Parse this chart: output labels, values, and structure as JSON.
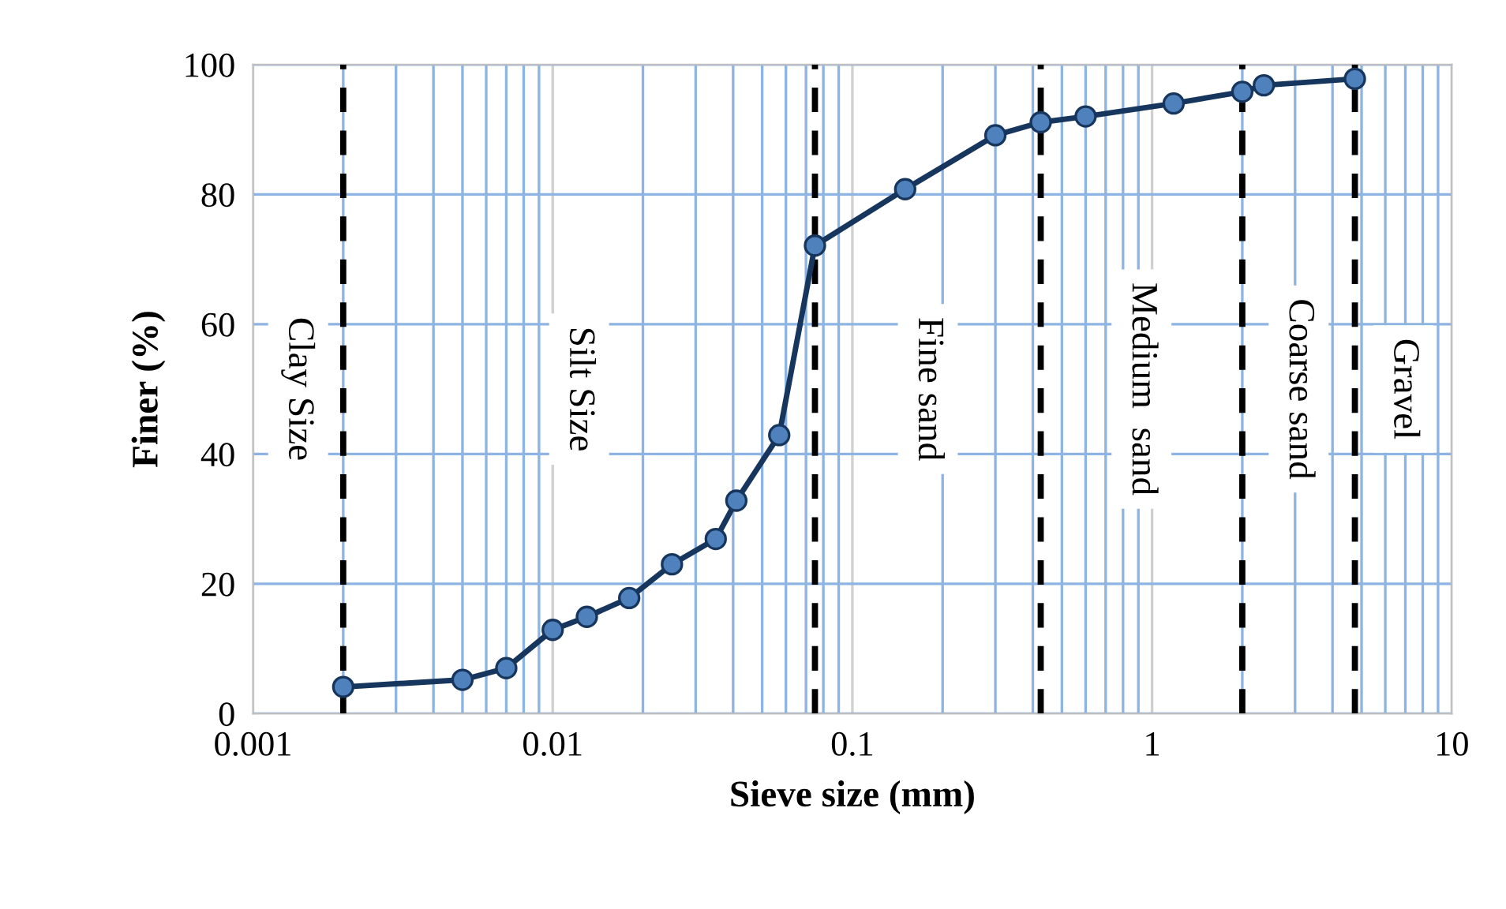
{
  "chart_data": {
    "type": "line",
    "xlabel": "Sieve size (mm)",
    "ylabel": "Finer (%)",
    "log": "x",
    "marker": "circle",
    "line_style": "solid",
    "grid": true,
    "x": [
      0.002,
      0.005,
      0.007,
      0.01,
      0.013,
      0.018,
      0.025,
      0.035,
      0.041,
      0.057,
      0.075,
      0.15,
      0.3,
      0.425,
      0.6,
      1.18,
      2,
      2.36,
      4.75
    ],
    "series": [
      {
        "color": "#4f81bd",
        "values": [
          4.1,
          5.2,
          7.0,
          12.9,
          14.9,
          17.8,
          23,
          26.9,
          32.8,
          42.9,
          72.1,
          80.8,
          89.1,
          91.1,
          92.0,
          94.0,
          95.8,
          96.8,
          97.8
        ]
      }
    ],
    "xlim": [
      0.001,
      10
    ],
    "xticks": [
      0.001,
      0.01,
      0.1,
      1,
      10
    ],
    "ylim": [
      0,
      100
    ],
    "yticks": [
      0,
      20,
      40,
      60,
      80,
      100
    ],
    "ref_lines": [
      {
        "axis": "x",
        "value": 0.002,
        "line_style": "dashed",
        "color": "#000000"
      },
      {
        "axis": "x",
        "value": 0.075,
        "line_style": "dashed",
        "color": "#000000"
      },
      {
        "axis": "x",
        "value": 0.425,
        "line_style": "dashed",
        "color": "#000000"
      },
      {
        "axis": "x",
        "value": 2,
        "line_style": "dashed",
        "color": "#000000"
      },
      {
        "axis": "x",
        "value": 4.75,
        "line_style": "dashed",
        "color": "#000000"
      }
    ],
    "annotations": [
      "Clay Size",
      "Silt Size",
      "Fine sand",
      "Medium  sand",
      "Coarse sand",
      "Gravel"
    ]
  }
}
